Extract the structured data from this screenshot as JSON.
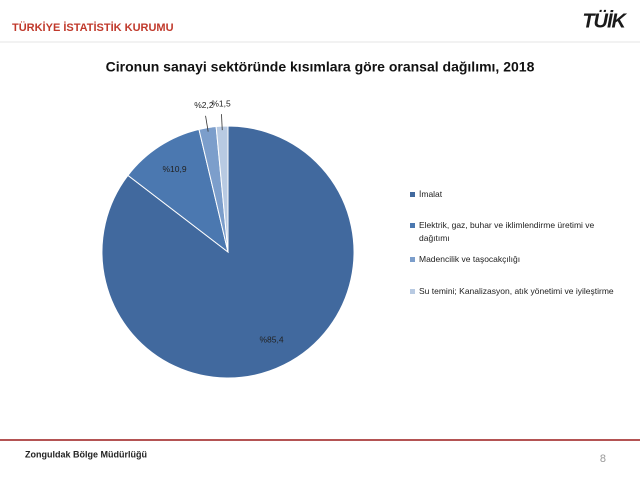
{
  "header": {
    "institution": "TÜRKİYE İSTATİSTİK KURUMU",
    "logo": "TÜİK"
  },
  "chart_data": {
    "type": "pie",
    "title": "Cironun sanayi sektöründe kısımlara göre oransal dağılımı, 2018",
    "categories": [
      "İmalat",
      "Elektrik, gaz, buhar ve iklimlendirme üretimi ve dağıtımı",
      "Madencilik ve taşocakçılığı",
      "Su temini; Kanalizasyon, atık yönetimi ve iyileştirme"
    ],
    "values": [
      85.4,
      10.9,
      2.2,
      1.5
    ],
    "value_labels": [
      "%85,4",
      "%10,9",
      "%2,2",
      "%1,5"
    ],
    "colors": [
      "#41699e",
      "#4b78b0",
      "#7c9ecb",
      "#b8cae2"
    ],
    "legend": "right"
  },
  "footer": {
    "office": "Zonguldak Bölge Müdürlüğü",
    "page": 8
  }
}
